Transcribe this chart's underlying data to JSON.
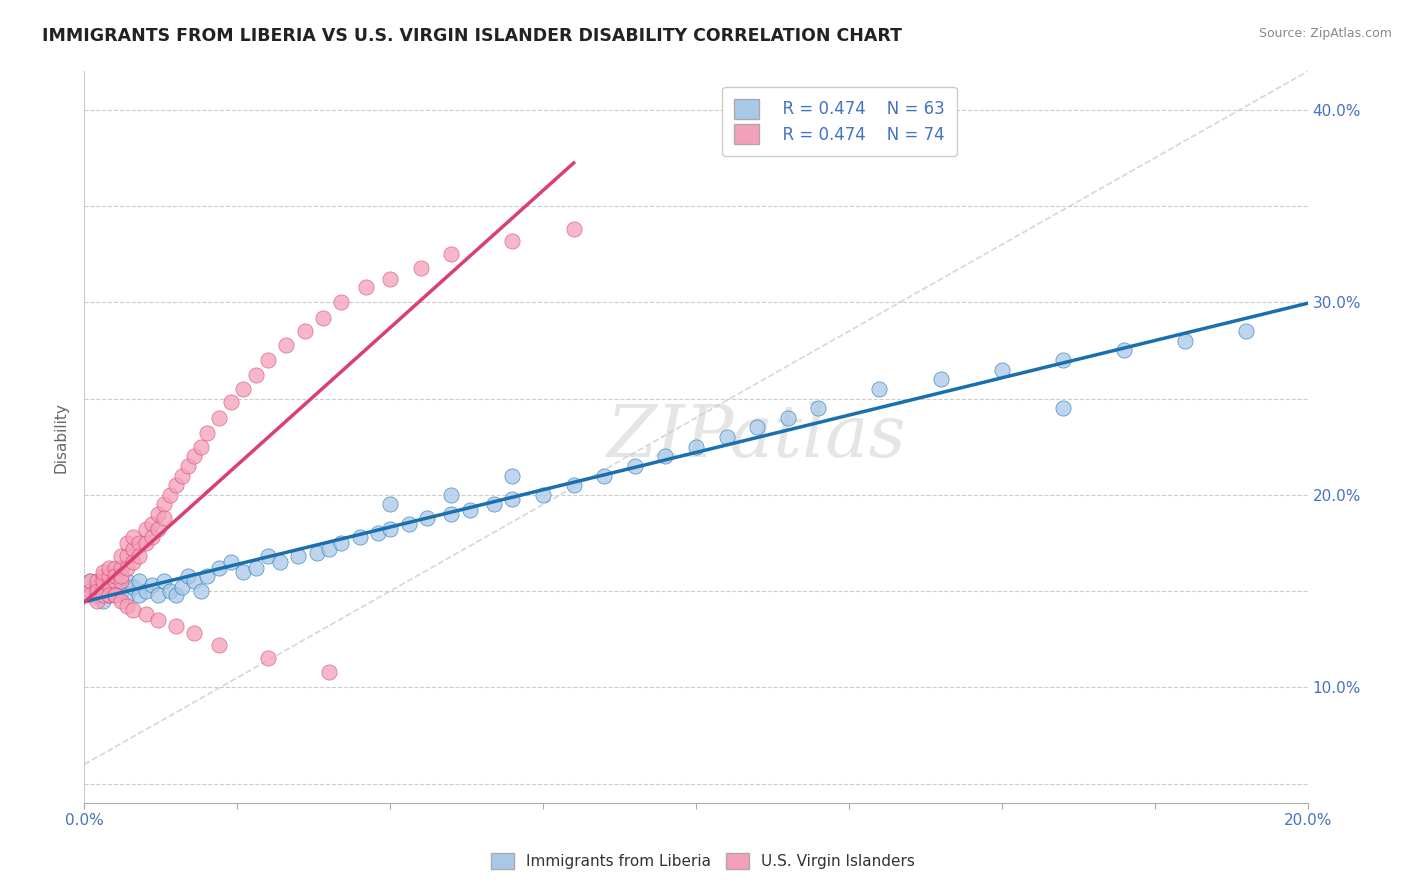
{
  "title": "IMMIGRANTS FROM LIBERIA VS U.S. VIRGIN ISLANDER DISABILITY CORRELATION CHART",
  "source": "Source: ZipAtlas.com",
  "ylabel": "Disability",
  "xlim": [
    0.0,
    0.2
  ],
  "ylim": [
    0.04,
    0.42
  ],
  "xtick_positions": [
    0.0,
    0.025,
    0.05,
    0.075,
    0.1,
    0.125,
    0.15,
    0.175,
    0.2
  ],
  "xtick_labels": [
    "0.0%",
    "",
    "",
    "",
    "",
    "",
    "",
    "",
    "20.0%"
  ],
  "ytick_positions": [
    0.05,
    0.1,
    0.15,
    0.2,
    0.25,
    0.3,
    0.35,
    0.4
  ],
  "ytick_labels_right": [
    "",
    "10.0%",
    "",
    "20.0%",
    "",
    "30.0%",
    "",
    "40.0%"
  ],
  "legend_R1": "R = 0.474",
  "legend_N1": "N = 63",
  "legend_R2": "R = 0.474",
  "legend_N2": "N = 74",
  "color_blue": "#a8c8e8",
  "color_pink": "#f4a0b8",
  "color_line_blue": "#1a6faf",
  "color_line_pink": "#d94070",
  "watermark": "ZIPatlas",
  "blue_x": [
    0.001,
    0.002,
    0.003,
    0.004,
    0.005,
    0.005,
    0.006,
    0.007,
    0.007,
    0.008,
    0.009,
    0.009,
    0.01,
    0.011,
    0.012,
    0.013,
    0.014,
    0.015,
    0.016,
    0.017,
    0.018,
    0.019,
    0.02,
    0.022,
    0.024,
    0.026,
    0.028,
    0.03,
    0.032,
    0.035,
    0.038,
    0.04,
    0.042,
    0.045,
    0.048,
    0.05,
    0.053,
    0.056,
    0.06,
    0.063,
    0.067,
    0.07,
    0.075,
    0.08,
    0.085,
    0.09,
    0.095,
    0.1,
    0.105,
    0.11,
    0.115,
    0.12,
    0.13,
    0.14,
    0.15,
    0.16,
    0.17,
    0.18,
    0.19,
    0.05,
    0.06,
    0.07,
    0.16
  ],
  "blue_y": [
    0.155,
    0.15,
    0.145,
    0.148,
    0.152,
    0.158,
    0.15,
    0.155,
    0.148,
    0.152,
    0.148,
    0.155,
    0.15,
    0.153,
    0.148,
    0.155,
    0.15,
    0.148,
    0.152,
    0.158,
    0.155,
    0.15,
    0.158,
    0.162,
    0.165,
    0.16,
    0.162,
    0.168,
    0.165,
    0.168,
    0.17,
    0.172,
    0.175,
    0.178,
    0.18,
    0.182,
    0.185,
    0.188,
    0.19,
    0.192,
    0.195,
    0.198,
    0.2,
    0.205,
    0.21,
    0.215,
    0.22,
    0.225,
    0.23,
    0.235,
    0.24,
    0.245,
    0.255,
    0.26,
    0.265,
    0.27,
    0.275,
    0.28,
    0.285,
    0.195,
    0.2,
    0.21,
    0.245
  ],
  "pink_x": [
    0.001,
    0.001,
    0.001,
    0.002,
    0.002,
    0.002,
    0.002,
    0.002,
    0.003,
    0.003,
    0.003,
    0.003,
    0.003,
    0.004,
    0.004,
    0.004,
    0.004,
    0.005,
    0.005,
    0.005,
    0.005,
    0.006,
    0.006,
    0.006,
    0.006,
    0.007,
    0.007,
    0.007,
    0.008,
    0.008,
    0.008,
    0.009,
    0.009,
    0.01,
    0.01,
    0.011,
    0.011,
    0.012,
    0.012,
    0.013,
    0.013,
    0.014,
    0.015,
    0.016,
    0.017,
    0.018,
    0.019,
    0.02,
    0.022,
    0.024,
    0.026,
    0.028,
    0.03,
    0.033,
    0.036,
    0.039,
    0.042,
    0.046,
    0.05,
    0.055,
    0.06,
    0.07,
    0.08,
    0.005,
    0.006,
    0.007,
    0.008,
    0.01,
    0.012,
    0.015,
    0.018,
    0.022,
    0.03,
    0.04
  ],
  "pink_y": [
    0.15,
    0.155,
    0.148,
    0.152,
    0.148,
    0.155,
    0.15,
    0.145,
    0.158,
    0.152,
    0.148,
    0.155,
    0.16,
    0.153,
    0.158,
    0.148,
    0.162,
    0.155,
    0.162,
    0.148,
    0.158,
    0.162,
    0.155,
    0.168,
    0.158,
    0.168,
    0.175,
    0.162,
    0.172,
    0.165,
    0.178,
    0.175,
    0.168,
    0.182,
    0.175,
    0.185,
    0.178,
    0.19,
    0.182,
    0.195,
    0.188,
    0.2,
    0.205,
    0.21,
    0.215,
    0.22,
    0.225,
    0.232,
    0.24,
    0.248,
    0.255,
    0.262,
    0.27,
    0.278,
    0.285,
    0.292,
    0.3,
    0.308,
    0.312,
    0.318,
    0.325,
    0.332,
    0.338,
    0.148,
    0.145,
    0.142,
    0.14,
    0.138,
    0.135,
    0.132,
    0.128,
    0.122,
    0.115,
    0.108
  ]
}
